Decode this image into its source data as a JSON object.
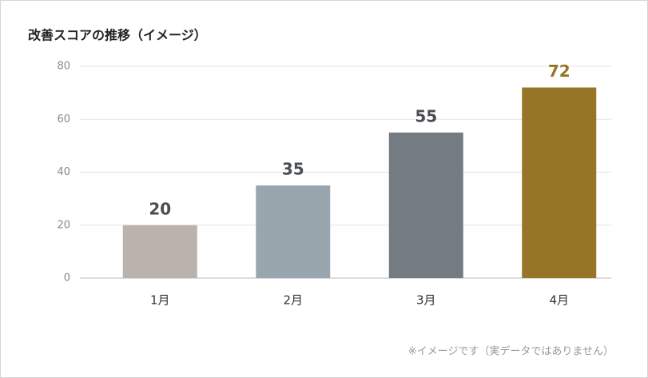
{
  "chart_data": {
    "type": "bar",
    "title": "改善スコアの推移（イメージ）",
    "categories": [
      "1月",
      "2月",
      "3月",
      "4月"
    ],
    "values": [
      20,
      35,
      55,
      72
    ],
    "colors": [
      "#b9b3ab",
      "#9aa6ae",
      "#757b82",
      "#977527"
    ],
    "label_colors": [
      "#4a4d52",
      "#4a4d52",
      "#4a4d52",
      "#977527"
    ],
    "ylim": [
      0,
      80
    ],
    "yticks": [
      0,
      20,
      40,
      60,
      80
    ],
    "grid": true,
    "note": "※イメージです（実データではありません）"
  }
}
